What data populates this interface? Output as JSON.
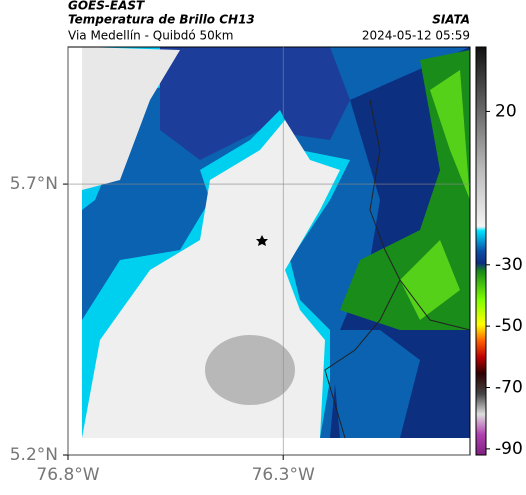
{
  "header": {
    "source": "GOES-EAST",
    "title": "Temperatura de Brillo CH13",
    "org": "SIATA",
    "route": "Via Medellín - Quibdó 50km",
    "datetime": "2024-05-12 05:59"
  },
  "map": {
    "latlim": [
      5.2,
      5.953
    ],
    "lonlim": [
      -76.8,
      -75.866
    ],
    "lat_ticks": [
      {
        "value": 5.7,
        "label": "5.7°N"
      },
      {
        "value": 5.2,
        "label": "5.2°N"
      }
    ],
    "lon_ticks": [
      {
        "value": -76.8,
        "label": "76.8°W"
      },
      {
        "value": -76.3,
        "label": "76.3°W"
      }
    ],
    "colorbar": {
      "lim": [
        -92,
        41
      ],
      "ticks": [
        20,
        -30,
        -50,
        -70,
        -90
      ]
    }
  }
}
